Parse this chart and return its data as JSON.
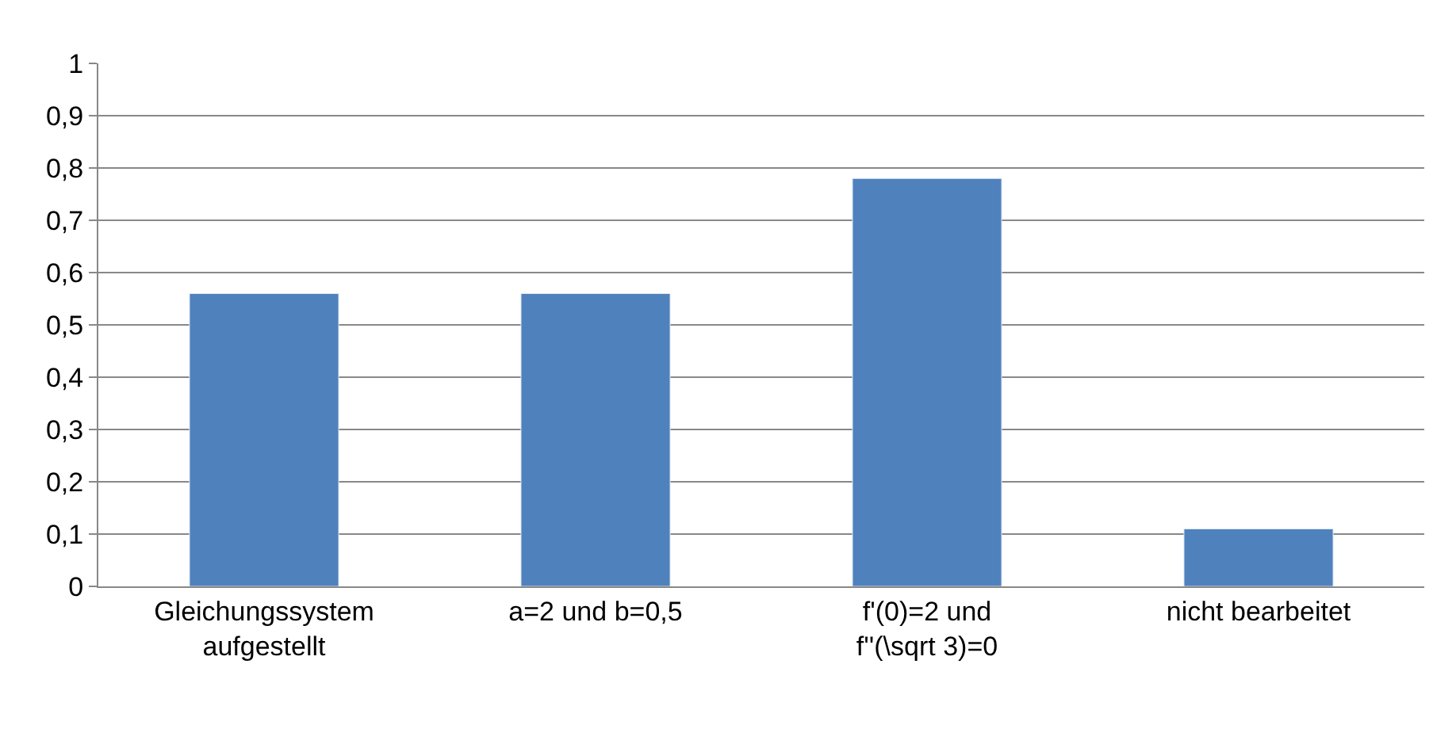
{
  "chart_data": {
    "type": "bar",
    "categories": [
      "Gleichungssystem\naufgestellt",
      "a=2 und b=0,5",
      "f'(0)=2 und\nf''(\\sqrt 3)=0",
      "nicht bearbeitet"
    ],
    "values": [
      0.56,
      0.56,
      0.78,
      0.11
    ],
    "color": "#4f81bd",
    "ylim": [
      0,
      1
    ],
    "yticks": [
      0,
      {
        "value": 0.1,
        "label": "0,1"
      },
      {
        "value": 0.2,
        "label": "0,2"
      },
      {
        "value": 0.3,
        "label": "0,3"
      },
      {
        "value": 0.4,
        "label": "0,4"
      },
      {
        "value": 0.5,
        "label": "0,5"
      },
      {
        "value": 0.6,
        "label": "0,6"
      },
      {
        "value": 0.7,
        "label": "0,7"
      },
      {
        "value": 0.8,
        "label": "0,8"
      },
      {
        "value": 0.9,
        "label": "0,9"
      },
      1
    ],
    "grid": "y",
    "legend": false
  }
}
